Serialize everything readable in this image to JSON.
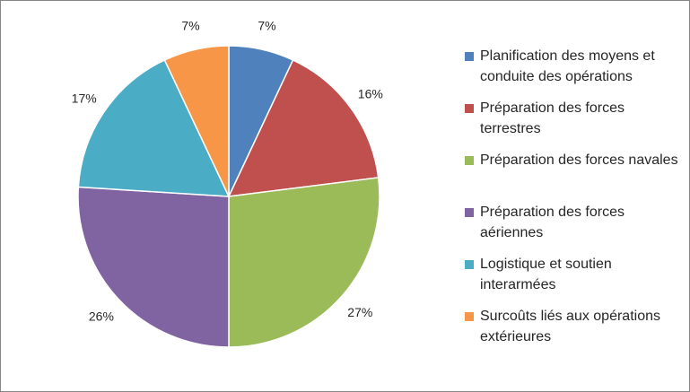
{
  "chart_data": {
    "type": "pie",
    "title": "",
    "legend_position": "right",
    "slices": [
      {
        "label": "Planification des moyens et conduite des opérations",
        "value": 7,
        "value_label": "7%",
        "color": "#4F81BD"
      },
      {
        "label": "Préparation des forces terrestres",
        "value": 16,
        "value_label": "16%",
        "color": "#C0504D"
      },
      {
        "label": "Préparation des forces navales",
        "value": 27,
        "value_label": "27%",
        "color": "#9BBB59"
      },
      {
        "label": "Préparation des forces aériennes",
        "value": 26,
        "value_label": "26%",
        "color": "#8064A2"
      },
      {
        "label": "Logistique et soutien interarmées",
        "value": 17,
        "value_label": "17%",
        "color": "#4BACC6"
      },
      {
        "label": "Surcoûts liés aux opérations extérieures",
        "value": 7,
        "value_label": "7%",
        "color": "#F79646"
      }
    ]
  }
}
